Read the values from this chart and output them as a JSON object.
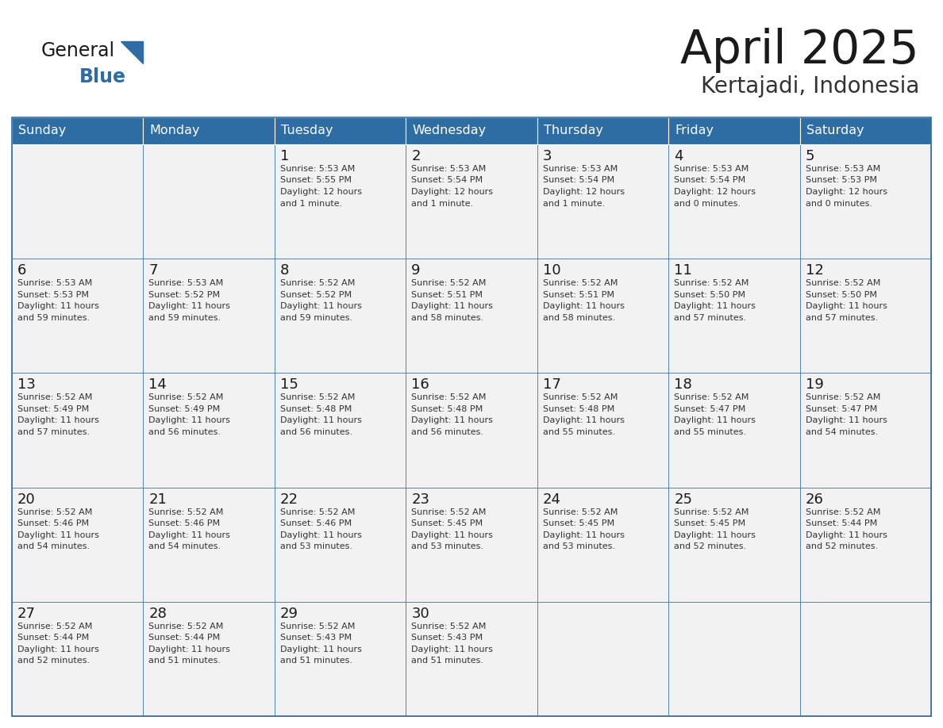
{
  "title": "April 2025",
  "subtitle": "Kertajadi, Indonesia",
  "header_bg": "#2E6DA4",
  "header_text_color": "#FFFFFF",
  "cell_bg": "#F2F2F2",
  "border_color": "#2E6DA4",
  "day_names": [
    "Sunday",
    "Monday",
    "Tuesday",
    "Wednesday",
    "Thursday",
    "Friday",
    "Saturday"
  ],
  "title_color": "#1a1a1a",
  "subtitle_color": "#333333",
  "day_number_color": "#1a1a1a",
  "cell_text_color": "#333333",
  "logo_general_color": "#1a1a1a",
  "logo_blue_color": "#2E6DA4",
  "calendar": [
    [
      {
        "day": 0,
        "sunrise": "",
        "sunset": "",
        "daylight": ""
      },
      {
        "day": 0,
        "sunrise": "",
        "sunset": "",
        "daylight": ""
      },
      {
        "day": 1,
        "sunrise": "5:53 AM",
        "sunset": "5:55 PM",
        "daylight": "12 hours and 1 minute."
      },
      {
        "day": 2,
        "sunrise": "5:53 AM",
        "sunset": "5:54 PM",
        "daylight": "12 hours and 1 minute."
      },
      {
        "day": 3,
        "sunrise": "5:53 AM",
        "sunset": "5:54 PM",
        "daylight": "12 hours and 1 minute."
      },
      {
        "day": 4,
        "sunrise": "5:53 AM",
        "sunset": "5:54 PM",
        "daylight": "12 hours and 0 minutes."
      },
      {
        "day": 5,
        "sunrise": "5:53 AM",
        "sunset": "5:53 PM",
        "daylight": "12 hours and 0 minutes."
      }
    ],
    [
      {
        "day": 6,
        "sunrise": "5:53 AM",
        "sunset": "5:53 PM",
        "daylight": "11 hours and 59 minutes."
      },
      {
        "day": 7,
        "sunrise": "5:53 AM",
        "sunset": "5:52 PM",
        "daylight": "11 hours and 59 minutes."
      },
      {
        "day": 8,
        "sunrise": "5:52 AM",
        "sunset": "5:52 PM",
        "daylight": "11 hours and 59 minutes."
      },
      {
        "day": 9,
        "sunrise": "5:52 AM",
        "sunset": "5:51 PM",
        "daylight": "11 hours and 58 minutes."
      },
      {
        "day": 10,
        "sunrise": "5:52 AM",
        "sunset": "5:51 PM",
        "daylight": "11 hours and 58 minutes."
      },
      {
        "day": 11,
        "sunrise": "5:52 AM",
        "sunset": "5:50 PM",
        "daylight": "11 hours and 57 minutes."
      },
      {
        "day": 12,
        "sunrise": "5:52 AM",
        "sunset": "5:50 PM",
        "daylight": "11 hours and 57 minutes."
      }
    ],
    [
      {
        "day": 13,
        "sunrise": "5:52 AM",
        "sunset": "5:49 PM",
        "daylight": "11 hours and 57 minutes."
      },
      {
        "day": 14,
        "sunrise": "5:52 AM",
        "sunset": "5:49 PM",
        "daylight": "11 hours and 56 minutes."
      },
      {
        "day": 15,
        "sunrise": "5:52 AM",
        "sunset": "5:48 PM",
        "daylight": "11 hours and 56 minutes."
      },
      {
        "day": 16,
        "sunrise": "5:52 AM",
        "sunset": "5:48 PM",
        "daylight": "11 hours and 56 minutes."
      },
      {
        "day": 17,
        "sunrise": "5:52 AM",
        "sunset": "5:48 PM",
        "daylight": "11 hours and 55 minutes."
      },
      {
        "day": 18,
        "sunrise": "5:52 AM",
        "sunset": "5:47 PM",
        "daylight": "11 hours and 55 minutes."
      },
      {
        "day": 19,
        "sunrise": "5:52 AM",
        "sunset": "5:47 PM",
        "daylight": "11 hours and 54 minutes."
      }
    ],
    [
      {
        "day": 20,
        "sunrise": "5:52 AM",
        "sunset": "5:46 PM",
        "daylight": "11 hours and 54 minutes."
      },
      {
        "day": 21,
        "sunrise": "5:52 AM",
        "sunset": "5:46 PM",
        "daylight": "11 hours and 54 minutes."
      },
      {
        "day": 22,
        "sunrise": "5:52 AM",
        "sunset": "5:46 PM",
        "daylight": "11 hours and 53 minutes."
      },
      {
        "day": 23,
        "sunrise": "5:52 AM",
        "sunset": "5:45 PM",
        "daylight": "11 hours and 53 minutes."
      },
      {
        "day": 24,
        "sunrise": "5:52 AM",
        "sunset": "5:45 PM",
        "daylight": "11 hours and 53 minutes."
      },
      {
        "day": 25,
        "sunrise": "5:52 AM",
        "sunset": "5:45 PM",
        "daylight": "11 hours and 52 minutes."
      },
      {
        "day": 26,
        "sunrise": "5:52 AM",
        "sunset": "5:44 PM",
        "daylight": "11 hours and 52 minutes."
      }
    ],
    [
      {
        "day": 27,
        "sunrise": "5:52 AM",
        "sunset": "5:44 PM",
        "daylight": "11 hours and 52 minutes."
      },
      {
        "day": 28,
        "sunrise": "5:52 AM",
        "sunset": "5:44 PM",
        "daylight": "11 hours and 51 minutes."
      },
      {
        "day": 29,
        "sunrise": "5:52 AM",
        "sunset": "5:43 PM",
        "daylight": "11 hours and 51 minutes."
      },
      {
        "day": 30,
        "sunrise": "5:52 AM",
        "sunset": "5:43 PM",
        "daylight": "11 hours and 51 minutes."
      },
      {
        "day": 0,
        "sunrise": "",
        "sunset": "",
        "daylight": ""
      },
      {
        "day": 0,
        "sunrise": "",
        "sunset": "",
        "daylight": ""
      },
      {
        "day": 0,
        "sunrise": "",
        "sunset": "",
        "daylight": ""
      }
    ]
  ]
}
